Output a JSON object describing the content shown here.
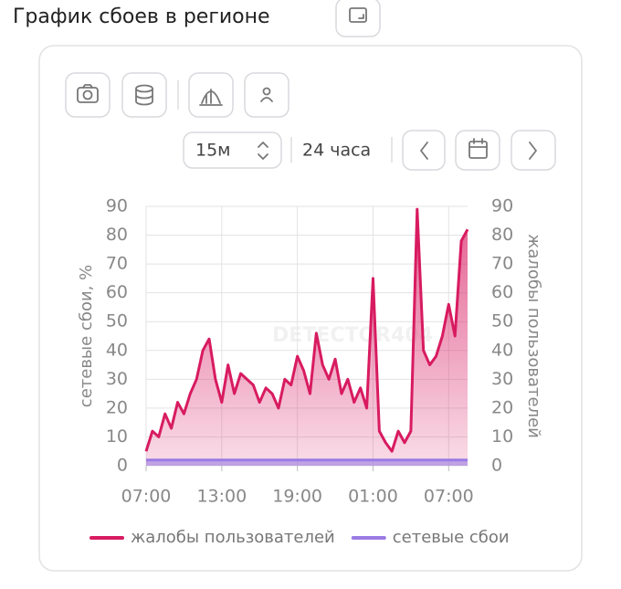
{
  "header": {
    "title": "График сбоев в регионе"
  },
  "controls": {
    "interval": "15м",
    "range": "24 часа"
  },
  "chart_data": {
    "type": "line",
    "watermark": "DETECTOR404",
    "categories": [
      "07:00",
      null,
      null,
      null,
      null,
      null,
      null,
      null,
      null,
      null,
      null,
      null,
      "13:00",
      null,
      null,
      null,
      null,
      null,
      null,
      null,
      null,
      null,
      null,
      null,
      "19:00",
      null,
      null,
      null,
      null,
      null,
      null,
      null,
      null,
      null,
      null,
      null,
      "01:00",
      null,
      null,
      null,
      null,
      null,
      null,
      null,
      null,
      null,
      null,
      null,
      "07:00",
      null,
      null,
      null
    ],
    "series": [
      {
        "name": "жалобы пользователей",
        "color": "#d81b60",
        "axis": "y2",
        "area": true,
        "values": [
          5,
          12,
          10,
          18,
          13,
          22,
          18,
          25,
          30,
          40,
          44,
          30,
          22,
          35,
          25,
          32,
          30,
          28,
          22,
          27,
          25,
          20,
          30,
          28,
          38,
          33,
          25,
          46,
          35,
          30,
          37,
          25,
          30,
          22,
          27,
          20,
          65,
          12,
          8,
          5,
          12,
          8,
          12,
          89,
          40,
          35,
          38,
          45,
          56,
          45,
          78,
          82
        ]
      },
      {
        "name": "сетевые сбои",
        "color": "#9b7be4",
        "area": true,
        "values": [
          2,
          2,
          2,
          2,
          2,
          2,
          2,
          2,
          2,
          2,
          2,
          2,
          2,
          2,
          2,
          2,
          2,
          2,
          2,
          2,
          2,
          2,
          2,
          2,
          2,
          2,
          2,
          2,
          2,
          2,
          2,
          2,
          2,
          2,
          2,
          2,
          2,
          2,
          2,
          2,
          2,
          2,
          2,
          2,
          2,
          2,
          2,
          2,
          2,
          2,
          2,
          2
        ]
      }
    ],
    "ylabel": "сетевые сбои, %",
    "y2label": "жалобы пользователей",
    "ylim": [
      0,
      90
    ],
    "yticks": [
      0,
      10,
      20,
      30,
      40,
      50,
      60,
      70,
      80,
      90
    ],
    "y2lim": [
      0,
      90
    ],
    "y2ticks": [
      0,
      10,
      20,
      30,
      40,
      50,
      60,
      70,
      80,
      90
    ],
    "grid": true,
    "legend": "bottom"
  }
}
